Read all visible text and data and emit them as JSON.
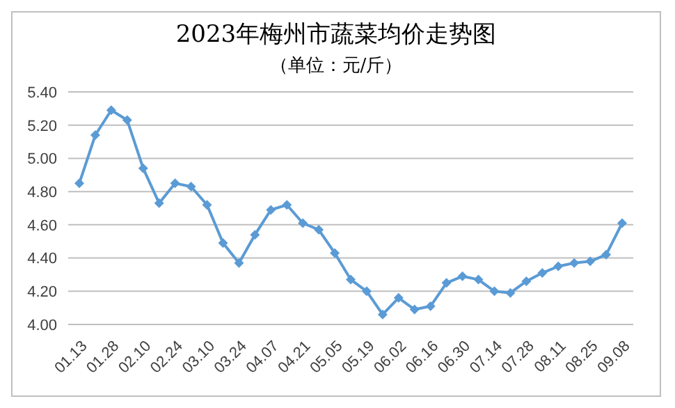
{
  "chart_data": {
    "type": "line",
    "title": "2023年梅州市蔬菜均价走势图",
    "subtitle": "（单位：元/斤）",
    "categories": [
      "01.13",
      null,
      "01.28",
      null,
      "02.10",
      null,
      "02.24",
      null,
      "03.10",
      null,
      "03.24",
      null,
      "04.07",
      null,
      "04.21",
      null,
      "05.05",
      null,
      "05.19",
      null,
      "06.02",
      null,
      "06.16",
      null,
      "06.30",
      null,
      "07.14",
      null,
      "07.28",
      null,
      "08.11",
      null,
      "08.25",
      null,
      "09.08"
    ],
    "series": [
      {
        "color": "#5b9bd5",
        "values": [
          4.85,
          5.14,
          5.29,
          5.23,
          4.94,
          4.73,
          4.85,
          4.83,
          4.72,
          4.49,
          4.37,
          4.54,
          4.69,
          4.72,
          4.61,
          4.57,
          4.43,
          4.27,
          4.2,
          4.06,
          4.16,
          4.09,
          4.11,
          4.25,
          4.29,
          4.27,
          4.2,
          4.19,
          4.26,
          4.31,
          4.35,
          4.37,
          4.38,
          4.42,
          4.61
        ]
      }
    ],
    "ylim": [
      4.0,
      5.4
    ],
    "yticks": [
      {
        "value": 4.0,
        "label": "4.00"
      },
      {
        "value": 4.2,
        "label": "4.20"
      },
      {
        "value": 4.4,
        "label": "4.40"
      },
      {
        "value": 4.6,
        "label": "4.60"
      },
      {
        "value": 4.8,
        "label": "4.80"
      },
      {
        "value": 5.0,
        "label": "5.00"
      },
      {
        "value": 5.2,
        "label": "5.20"
      },
      {
        "value": 5.4,
        "label": "5.40"
      }
    ],
    "grid": "y",
    "marker": "diamond",
    "line_style": "solid",
    "legend": false
  }
}
